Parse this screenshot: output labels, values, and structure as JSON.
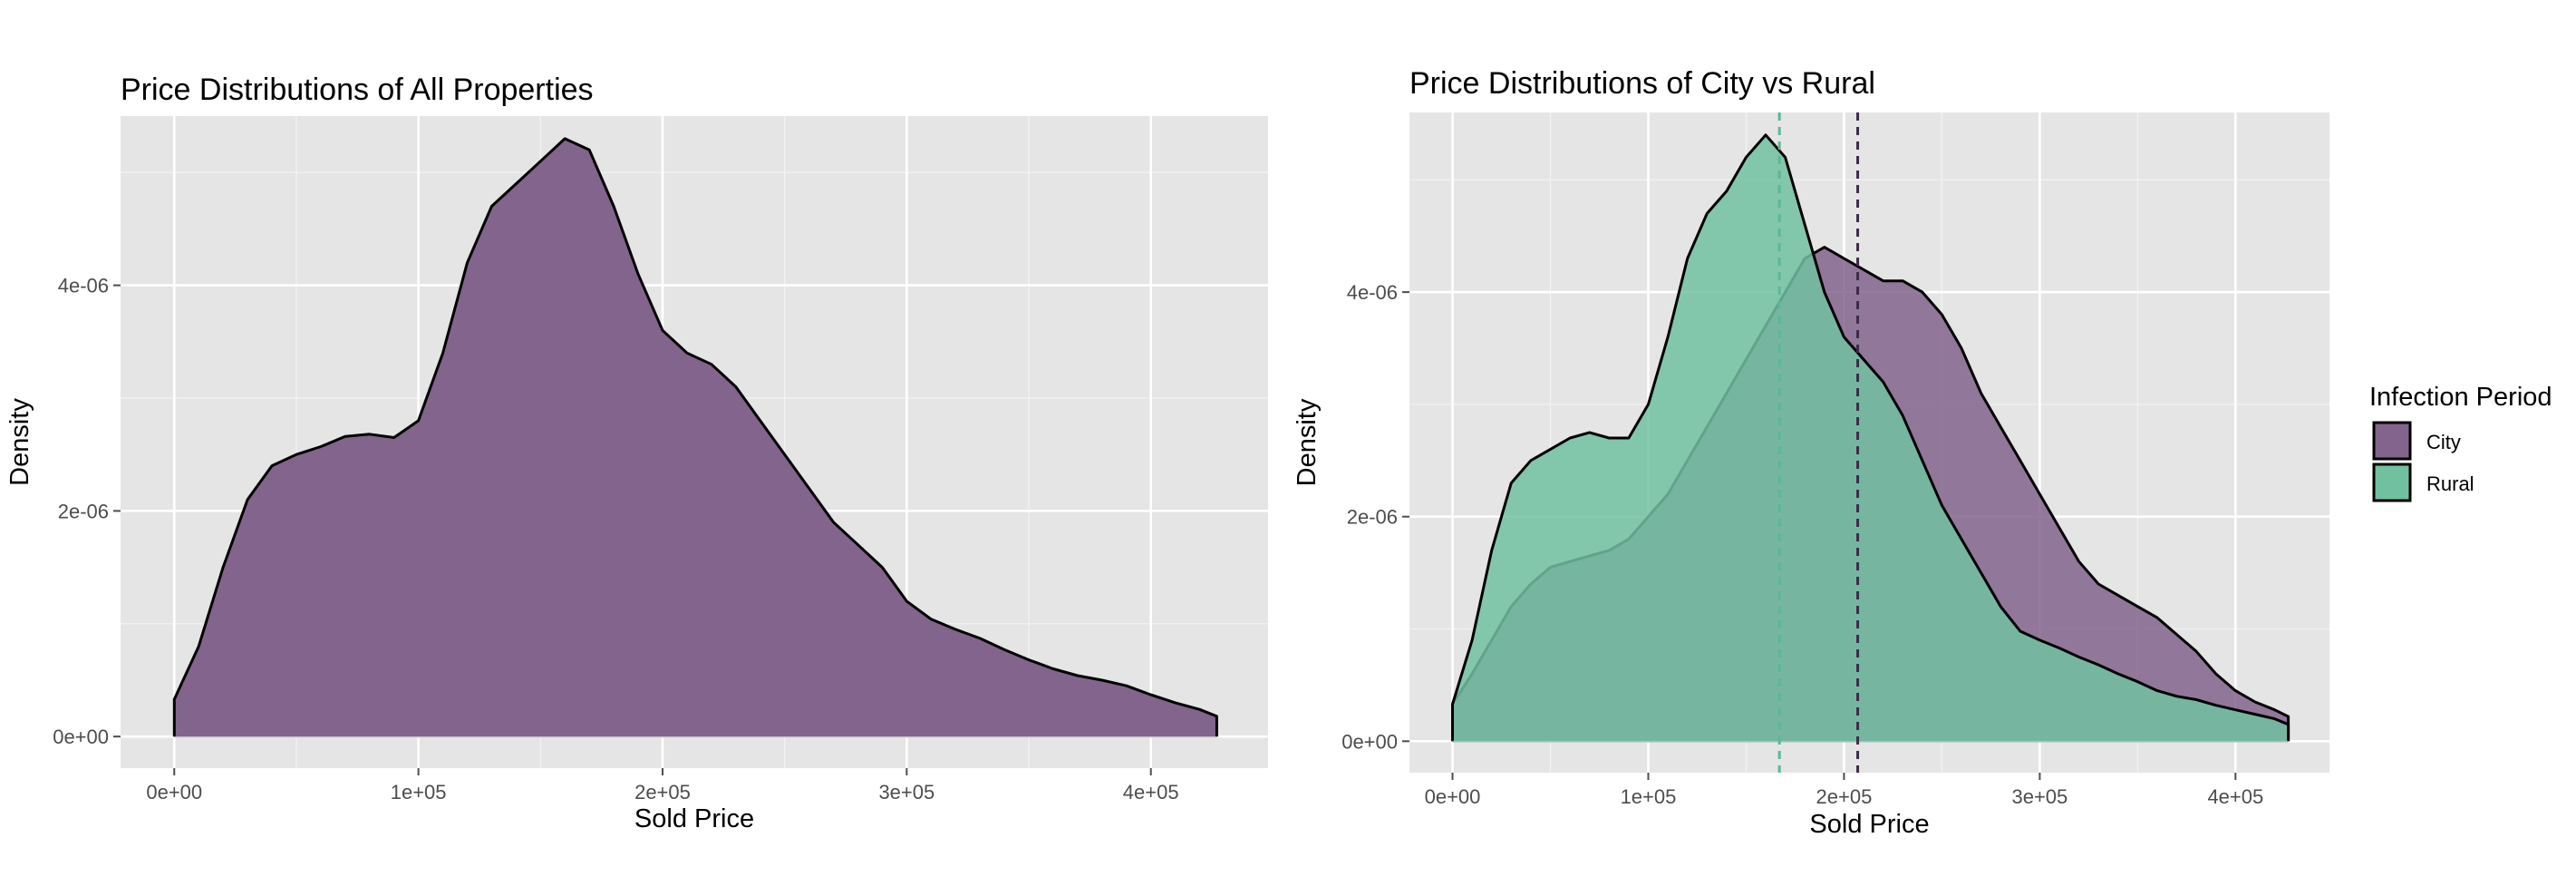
{
  "chart_data": [
    {
      "type": "area",
      "title": "Price Distributions of All Properties",
      "xlabel": "Sold Price",
      "ylabel": "Density",
      "xlim": [
        -22000,
        448000
      ],
      "ylim": [
        -2.8e-07,
        5.5e-06
      ],
      "x_ticks": [
        0,
        100000,
        200000,
        300000,
        400000
      ],
      "x_tick_labels": [
        "0e+00",
        "1e+05",
        "2e+05",
        "3e+05",
        "4e+05"
      ],
      "y_ticks": [
        0,
        2e-06,
        4e-06
      ],
      "y_tick_labels": [
        "0e+00",
        "2e-06",
        "4e-06"
      ],
      "grid": true,
      "series": [
        {
          "color": "#82648c",
          "points": [
            [
              0,
              3.3e-07
            ],
            [
              10000,
              8e-07
            ],
            [
              20000,
              1.5e-06
            ],
            [
              30000,
              2.1e-06
            ],
            [
              40000,
              2.4e-06
            ],
            [
              50000,
              2.5e-06
            ],
            [
              60000,
              2.57e-06
            ],
            [
              70000,
              2.66e-06
            ],
            [
              80000,
              2.68e-06
            ],
            [
              90000,
              2.65e-06
            ],
            [
              100000,
              2.8e-06
            ],
            [
              110000,
              3.4e-06
            ],
            [
              120000,
              4.2e-06
            ],
            [
              130000,
              4.7e-06
            ],
            [
              140000,
              4.9e-06
            ],
            [
              150000,
              5.1e-06
            ],
            [
              160000,
              5.3e-06
            ],
            [
              170000,
              5.2e-06
            ],
            [
              180000,
              4.7e-06
            ],
            [
              190000,
              4.1e-06
            ],
            [
              200000,
              3.6e-06
            ],
            [
              210000,
              3.4e-06
            ],
            [
              220000,
              3.3e-06
            ],
            [
              230000,
              3.1e-06
            ],
            [
              240000,
              2.8e-06
            ],
            [
              250000,
              2.5e-06
            ],
            [
              260000,
              2.2e-06
            ],
            [
              270000,
              1.9e-06
            ],
            [
              280000,
              1.7e-06
            ],
            [
              290000,
              1.5e-06
            ],
            [
              300000,
              1.2e-06
            ],
            [
              310000,
              1.04e-06
            ],
            [
              320000,
              9.5e-07
            ],
            [
              330000,
              8.7e-07
            ],
            [
              340000,
              7.7e-07
            ],
            [
              350000,
              6.8e-07
            ],
            [
              360000,
              6e-07
            ],
            [
              370000,
              5.4e-07
            ],
            [
              380000,
              5e-07
            ],
            [
              390000,
              4.5e-07
            ],
            [
              400000,
              3.7e-07
            ],
            [
              410000,
              3e-07
            ],
            [
              420000,
              2.4e-07
            ],
            [
              427000,
              1.8e-07
            ]
          ]
        }
      ]
    },
    {
      "type": "area",
      "title": "Price Distributions of City vs Rural",
      "xlabel": "Sold Price",
      "ylabel": "Density",
      "xlim": [
        -22000,
        448000
      ],
      "ylim": [
        -2.8e-07,
        5.6e-06
      ],
      "x_ticks": [
        0,
        100000,
        200000,
        300000,
        400000
      ],
      "x_tick_labels": [
        "0e+00",
        "1e+05",
        "2e+05",
        "3e+05",
        "4e+05"
      ],
      "y_ticks": [
        0,
        2e-06,
        4e-06
      ],
      "y_tick_labels": [
        "0e+00",
        "2e-06",
        "4e-06"
      ],
      "grid": true,
      "legend": {
        "title": "Infection Period",
        "position": "right"
      },
      "series": [
        {
          "name": "City",
          "color": "#82648c",
          "mean_line": 207000,
          "points": [
            [
              0,
              3.3e-07
            ],
            [
              10000,
              6e-07
            ],
            [
              20000,
              9e-07
            ],
            [
              30000,
              1.2e-06
            ],
            [
              40000,
              1.4e-06
            ],
            [
              50000,
              1.55e-06
            ],
            [
              60000,
              1.6e-06
            ],
            [
              70000,
              1.65e-06
            ],
            [
              80000,
              1.7e-06
            ],
            [
              90000,
              1.8e-06
            ],
            [
              100000,
              2e-06
            ],
            [
              110000,
              2.2e-06
            ],
            [
              120000,
              2.5e-06
            ],
            [
              130000,
              2.8e-06
            ],
            [
              140000,
              3.1e-06
            ],
            [
              150000,
              3.4e-06
            ],
            [
              160000,
              3.7e-06
            ],
            [
              170000,
              4e-06
            ],
            [
              180000,
              4.3e-06
            ],
            [
              190000,
              4.4e-06
            ],
            [
              200000,
              4.3e-06
            ],
            [
              210000,
              4.2e-06
            ],
            [
              220000,
              4.1e-06
            ],
            [
              230000,
              4.1e-06
            ],
            [
              240000,
              4e-06
            ],
            [
              250000,
              3.8e-06
            ],
            [
              260000,
              3.5e-06
            ],
            [
              270000,
              3.1e-06
            ],
            [
              280000,
              2.8e-06
            ],
            [
              290000,
              2.5e-06
            ],
            [
              300000,
              2.2e-06
            ],
            [
              310000,
              1.9e-06
            ],
            [
              320000,
              1.6e-06
            ],
            [
              330000,
              1.4e-06
            ],
            [
              340000,
              1.3e-06
            ],
            [
              350000,
              1.2e-06
            ],
            [
              360000,
              1.1e-06
            ],
            [
              370000,
              9.5e-07
            ],
            [
              380000,
              8e-07
            ],
            [
              390000,
              6e-07
            ],
            [
              400000,
              4.5e-07
            ],
            [
              410000,
              3.5e-07
            ],
            [
              420000,
              2.8e-07
            ],
            [
              427000,
              2.2e-07
            ]
          ]
        },
        {
          "name": "Rural",
          "color": "#71c1a1",
          "mean_line": 167000,
          "points": [
            [
              0,
              3.3e-07
            ],
            [
              10000,
              9e-07
            ],
            [
              20000,
              1.7e-06
            ],
            [
              30000,
              2.3e-06
            ],
            [
              40000,
              2.5e-06
            ],
            [
              50000,
              2.6e-06
            ],
            [
              60000,
              2.7e-06
            ],
            [
              70000,
              2.75e-06
            ],
            [
              80000,
              2.7e-06
            ],
            [
              90000,
              2.7e-06
            ],
            [
              100000,
              3e-06
            ],
            [
              110000,
              3.6e-06
            ],
            [
              120000,
              4.3e-06
            ],
            [
              130000,
              4.7e-06
            ],
            [
              140000,
              4.9e-06
            ],
            [
              150000,
              5.2e-06
            ],
            [
              160000,
              5.4e-06
            ],
            [
              170000,
              5.2e-06
            ],
            [
              180000,
              4.6e-06
            ],
            [
              190000,
              4e-06
            ],
            [
              200000,
              3.6e-06
            ],
            [
              210000,
              3.4e-06
            ],
            [
              220000,
              3.2e-06
            ],
            [
              230000,
              2.9e-06
            ],
            [
              240000,
              2.5e-06
            ],
            [
              250000,
              2.1e-06
            ],
            [
              260000,
              1.8e-06
            ],
            [
              270000,
              1.5e-06
            ],
            [
              280000,
              1.2e-06
            ],
            [
              290000,
              9.8e-07
            ],
            [
              300000,
              9e-07
            ],
            [
              310000,
              8.3e-07
            ],
            [
              320000,
              7.5e-07
            ],
            [
              330000,
              6.8e-07
            ],
            [
              340000,
              6e-07
            ],
            [
              350000,
              5.3e-07
            ],
            [
              360000,
              4.5e-07
            ],
            [
              370000,
              4e-07
            ],
            [
              380000,
              3.7e-07
            ],
            [
              390000,
              3.2e-07
            ],
            [
              400000,
              2.8e-07
            ],
            [
              410000,
              2.4e-07
            ],
            [
              420000,
              2e-07
            ],
            [
              427000,
              1.5e-07
            ]
          ]
        }
      ]
    }
  ]
}
